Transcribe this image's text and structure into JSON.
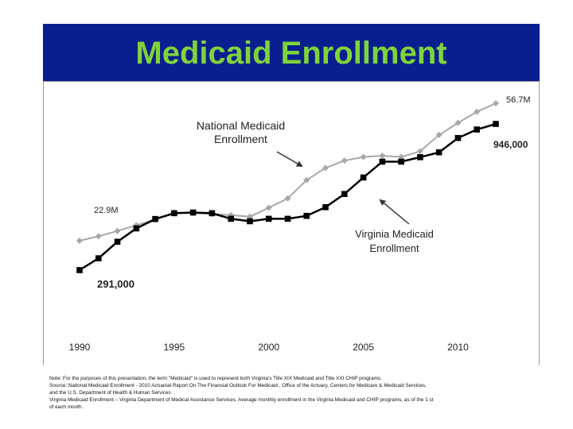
{
  "title": "Medicaid Enrollment",
  "colors": {
    "title_bar": "#0a1f8f",
    "title_text": "#7fd43a",
    "national_series": "#a8a8a8",
    "virginia_series": "#000000"
  },
  "annotations": {
    "national_end": "56.7M",
    "national_label_line1": "National Medicaid",
    "national_label_line2": "Enrollment",
    "virginia_end": "946,000",
    "national_start": "22.9M",
    "virginia_label_line1": "Virginia Medicaid",
    "virginia_label_line2": "Enrollment",
    "virginia_start": "291,000"
  },
  "notes": [
    "Note: For the purposes of this presentation, the term \"Medicaid\" is used to represent both Virginia's Title XIX Medicaid and Title XXI CHIP programs.",
    "Source: National Medicaid Enrollment - 2010 Actuarial Report On The Financial Outlook For Medicaid , Office of the Actuary, Centers for Medicare & Medicaid Services,",
    "and the U.S. Department of Health & Human Services",
    "Virginia Medicaid Enrollment – Virginia Department of Medical Assistance Services. Average monthly enrollment in the Virginia Medicaid and CHIP programs, as of the 1 st",
    "of each month."
  ],
  "chart_data": {
    "type": "line",
    "title": "Medicaid Enrollment",
    "xlabel": "",
    "ylabel": "",
    "x_ticks": [
      "1990",
      "1995",
      "2000",
      "2005",
      "2010"
    ],
    "xlim": [
      1990,
      2012
    ],
    "grid": false,
    "x": [
      1990,
      1991,
      1992,
      1993,
      1994,
      1995,
      1996,
      1997,
      1998,
      1999,
      2000,
      2001,
      2002,
      2003,
      2004,
      2005,
      2006,
      2007,
      2008,
      2009,
      2010,
      2011,
      2012
    ],
    "series": [
      {
        "name": "National Medicaid Enrollment",
        "color": "#a8a8a8",
        "marker": "diamond",
        "unit": "millions",
        "values": [
          22.9,
          24.0,
          25.3,
          26.7,
          28.1,
          29.8,
          29.7,
          29.5,
          29.2,
          28.8,
          31.0,
          33.3,
          37.8,
          40.8,
          42.6,
          43.5,
          43.8,
          43.5,
          44.9,
          48.9,
          51.9,
          54.6,
          56.7
        ]
      },
      {
        "name": "Virginia Medicaid Enrollment",
        "color": "#000000",
        "marker": "square",
        "unit": "persons",
        "values": [
          291000,
          344000,
          418000,
          478000,
          520000,
          546000,
          549000,
          546000,
          521000,
          510000,
          521000,
          521000,
          534000,
          573000,
          632000,
          706000,
          777000,
          777000,
          797000,
          819000,
          883000,
          921000,
          946000
        ]
      }
    ]
  }
}
